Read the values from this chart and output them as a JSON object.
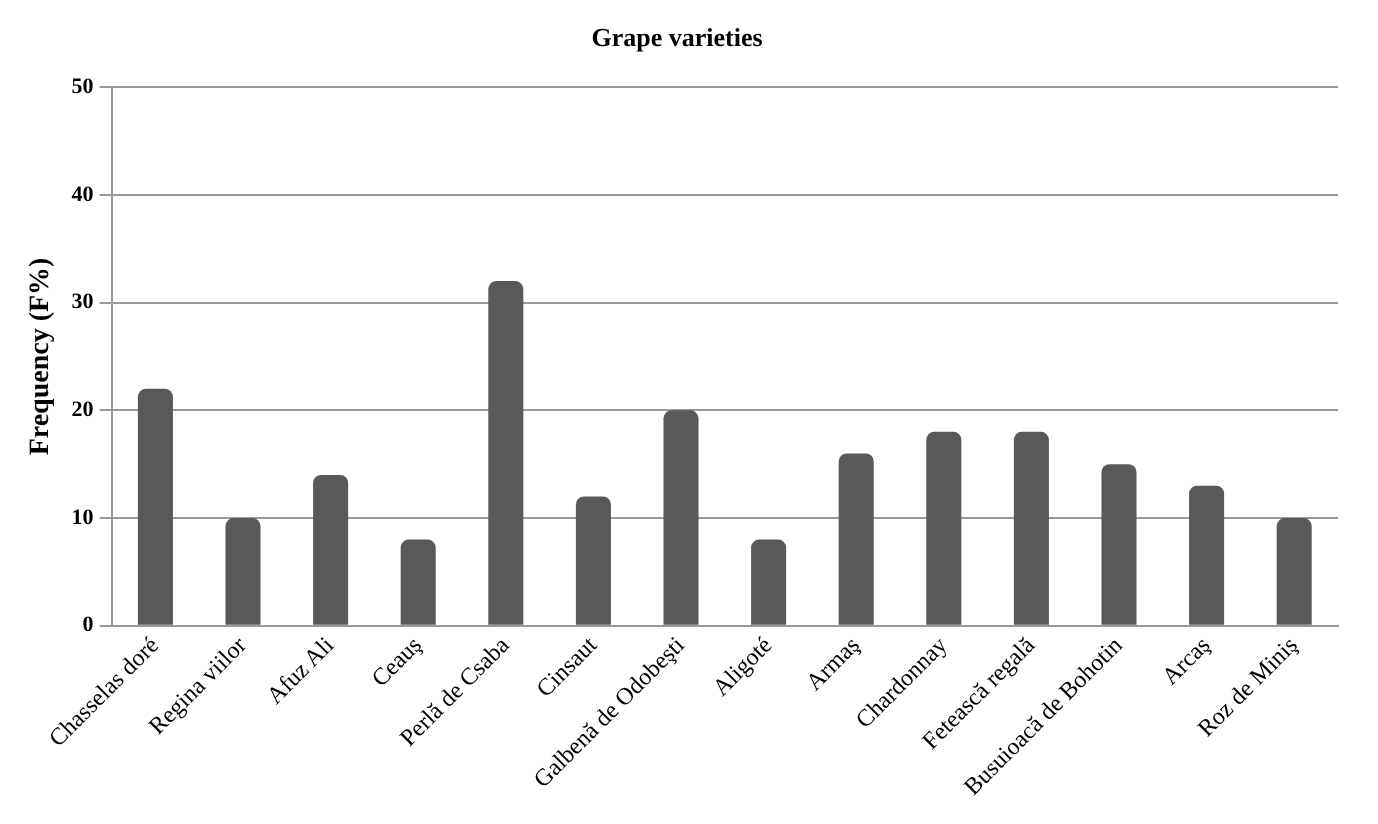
{
  "chart_data": {
    "type": "bar",
    "title": "Grape varieties",
    "ylabel": "Frequency (F%)",
    "categories": [
      "Chasselas doré",
      "Regina viilor",
      "Afuz Ali",
      "Ceauş",
      "Perlă de Csaba",
      "Cinsaut",
      "Galbenă de Odobeşti",
      "Aligoté",
      "Armaş",
      "Chardonnay",
      "Fetească regală",
      "Busuioacă de Bohotin",
      "Arcaş",
      "Roz de Miniş"
    ],
    "values": [
      22,
      10,
      14,
      8,
      32,
      12,
      20,
      8,
      16,
      18,
      18,
      15,
      13,
      10
    ],
    "color": "#595959",
    "ylim": [
      0,
      50
    ],
    "yticks": [
      0,
      10,
      20,
      30,
      40,
      50
    ],
    "grid": "y",
    "legend": false
  }
}
